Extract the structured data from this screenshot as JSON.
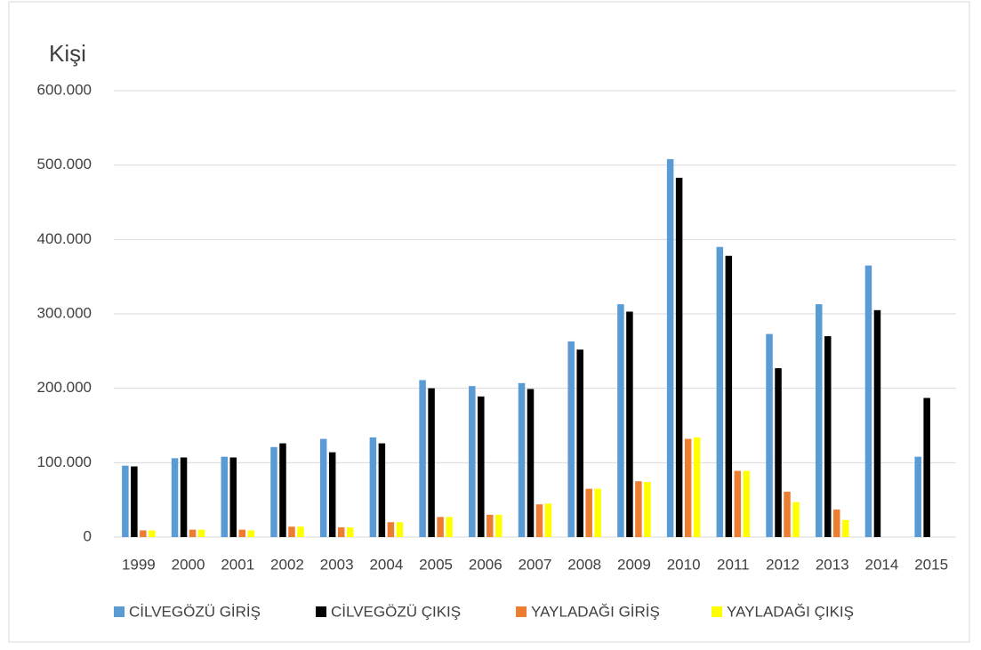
{
  "chart_data": {
    "type": "bar",
    "ylabel": "Kişi",
    "categories": [
      "1999",
      "2000",
      "2001",
      "2002",
      "2003",
      "2004",
      "2005",
      "2006",
      "2007",
      "2008",
      "2009",
      "2010",
      "2011",
      "2012",
      "2013",
      "2014",
      "2015"
    ],
    "series": [
      {
        "name": "CİLVEGÖZÜ GİRİŞ",
        "color": "#5b9bd5",
        "values": [
          96000,
          106000,
          108000,
          121000,
          132000,
          134000,
          211000,
          203000,
          207000,
          263000,
          313000,
          508000,
          390000,
          273000,
          313000,
          365000,
          108000
        ]
      },
      {
        "name": "CİLVEGÖZÜ ÇIKIŞ",
        "color": "#000000",
        "values": [
          95000,
          107000,
          107000,
          126000,
          114000,
          126000,
          200000,
          189000,
          199000,
          252000,
          303000,
          483000,
          378000,
          227000,
          270000,
          305000,
          187000
        ]
      },
      {
        "name": "YAYLADAĞI GİRİŞ",
        "color": "#ed7d31",
        "values": [
          9000,
          10000,
          10000,
          14000,
          13000,
          20000,
          27000,
          30000,
          44000,
          65000,
          75000,
          132000,
          89000,
          61000,
          37000,
          null,
          null
        ]
      },
      {
        "name": "YAYLADAĞI ÇIKIŞ",
        "color": "#ffff00",
        "values": [
          9000,
          10000,
          9000,
          14000,
          13000,
          20000,
          27000,
          30000,
          45000,
          65000,
          74000,
          134000,
          89000,
          47000,
          23000,
          null,
          null
        ]
      }
    ],
    "ylim": [
      0,
      600000
    ],
    "yticks": [
      0,
      {
        "value": 100000,
        "label": "100.000"
      },
      {
        "value": 200000,
        "label": "200.000"
      },
      {
        "value": 300000,
        "label": "300.000"
      },
      {
        "value": 400000,
        "label": "400.000"
      },
      {
        "value": 500000,
        "label": "500.000"
      },
      {
        "value": 600000,
        "label": "600.000"
      }
    ],
    "grid": true,
    "legend": "bottom"
  }
}
